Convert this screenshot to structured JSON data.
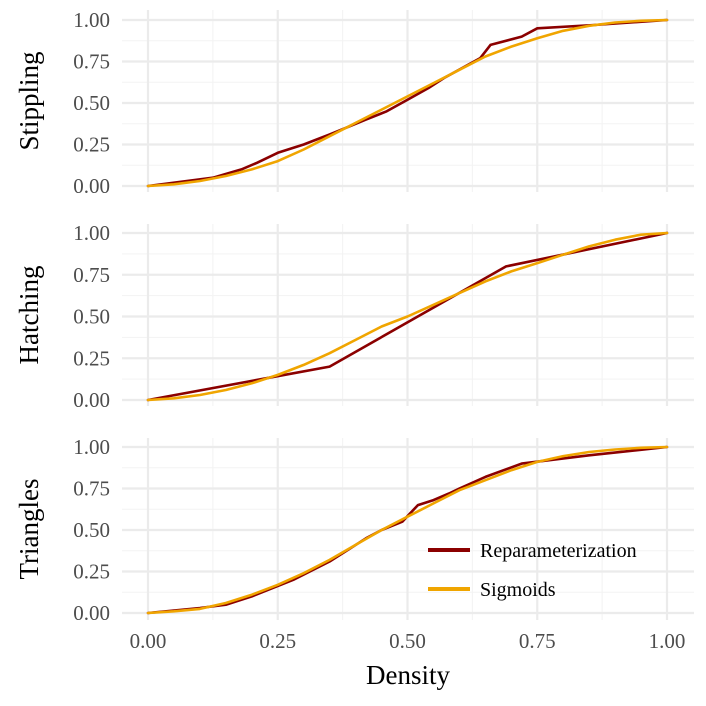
{
  "chart_data": {
    "type": "line",
    "xlabel": "Density",
    "x_ticks": [
      "0.00",
      "0.25",
      "0.50",
      "0.75",
      "1.00"
    ],
    "y_ticks": [
      "0.00",
      "0.25",
      "0.50",
      "0.75",
      "1.00"
    ],
    "xlim": [
      0,
      1
    ],
    "ylim": [
      0,
      1
    ],
    "grid": true,
    "legend": {
      "position": "bottom-right",
      "entries": [
        {
          "name": "Reparameterization",
          "color": "#8b0000"
        },
        {
          "name": "Sigmoids",
          "color": "#f0a500"
        }
      ]
    },
    "panels": [
      {
        "label": "Stippling",
        "series": [
          {
            "name": "Reparameterization",
            "color": "#8b0000",
            "x": [
              0,
              0.125,
              0.18,
              0.21,
              0.25,
              0.3,
              0.35,
              0.42,
              0.46,
              0.5,
              0.54,
              0.57,
              0.64,
              0.66,
              0.72,
              0.75,
              0.86,
              1.0
            ],
            "y": [
              0,
              0.05,
              0.1,
              0.14,
              0.2,
              0.25,
              0.31,
              0.4,
              0.45,
              0.52,
              0.59,
              0.65,
              0.77,
              0.85,
              0.9,
              0.95,
              0.97,
              1.0
            ]
          },
          {
            "name": "Sigmoids",
            "color": "#f0a500",
            "x": [
              0,
              0.05,
              0.1,
              0.15,
              0.2,
              0.25,
              0.3,
              0.35,
              0.4,
              0.45,
              0.5,
              0.55,
              0.6,
              0.65,
              0.7,
              0.75,
              0.8,
              0.85,
              0.9,
              0.95,
              1.0
            ],
            "y": [
              0,
              0.01,
              0.03,
              0.06,
              0.1,
              0.15,
              0.22,
              0.3,
              0.38,
              0.46,
              0.54,
              0.62,
              0.7,
              0.78,
              0.84,
              0.89,
              0.935,
              0.965,
              0.985,
              0.995,
              1.0
            ]
          }
        ]
      },
      {
        "label": "Hatching",
        "series": [
          {
            "name": "Reparameterization",
            "color": "#8b0000",
            "x": [
              0,
              0.35,
              0.69,
              1.0
            ],
            "y": [
              0,
              0.2,
              0.8,
              1.0
            ]
          },
          {
            "name": "Sigmoids",
            "color": "#f0a500",
            "x": [
              0,
              0.05,
              0.1,
              0.15,
              0.2,
              0.25,
              0.3,
              0.35,
              0.4,
              0.45,
              0.5,
              0.55,
              0.6,
              0.65,
              0.7,
              0.75,
              0.8,
              0.85,
              0.9,
              0.95,
              1.0
            ],
            "y": [
              0,
              0.01,
              0.03,
              0.06,
              0.1,
              0.15,
              0.21,
              0.28,
              0.36,
              0.44,
              0.5,
              0.57,
              0.64,
              0.71,
              0.77,
              0.82,
              0.87,
              0.92,
              0.96,
              0.99,
              1.0
            ]
          }
        ]
      },
      {
        "label": "Triangles",
        "series": [
          {
            "name": "Reparameterization",
            "color": "#8b0000",
            "x": [
              0,
              0.1,
              0.15,
              0.2,
              0.28,
              0.35,
              0.39,
              0.42,
              0.45,
              0.49,
              0.52,
              0.55,
              0.58,
              0.6,
              0.65,
              0.72,
              0.85,
              1.0
            ],
            "y": [
              0,
              0.03,
              0.05,
              0.1,
              0.2,
              0.31,
              0.39,
              0.45,
              0.5,
              0.55,
              0.65,
              0.68,
              0.72,
              0.75,
              0.82,
              0.9,
              0.95,
              1.0
            ]
          },
          {
            "name": "Sigmoids",
            "color": "#f0a500",
            "x": [
              0,
              0.05,
              0.1,
              0.15,
              0.2,
              0.25,
              0.3,
              0.35,
              0.4,
              0.45,
              0.5,
              0.55,
              0.6,
              0.65,
              0.7,
              0.75,
              0.8,
              0.85,
              0.9,
              0.95,
              1.0
            ],
            "y": [
              0,
              0.01,
              0.025,
              0.06,
              0.11,
              0.17,
              0.24,
              0.32,
              0.41,
              0.5,
              0.58,
              0.66,
              0.74,
              0.8,
              0.86,
              0.91,
              0.945,
              0.97,
              0.985,
              0.995,
              1.0
            ]
          }
        ]
      }
    ]
  }
}
